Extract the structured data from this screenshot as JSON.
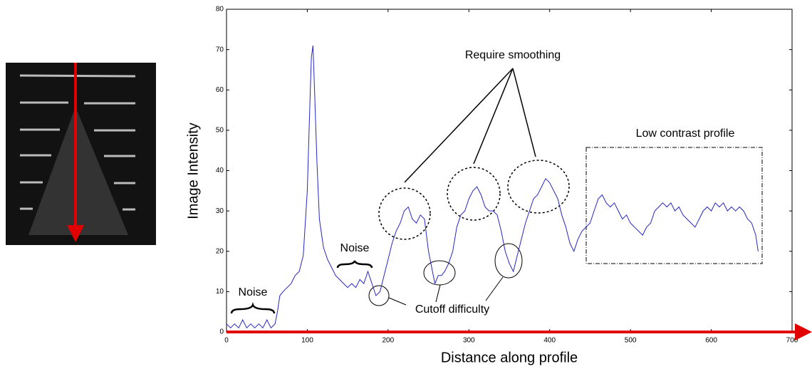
{
  "chart_data": {
    "type": "line",
    "x": [
      0,
      5,
      10,
      15,
      20,
      25,
      30,
      35,
      40,
      45,
      50,
      55,
      60,
      63,
      66,
      70,
      75,
      80,
      85,
      90,
      95,
      100,
      103,
      105,
      107,
      109,
      112,
      115,
      120,
      125,
      130,
      135,
      140,
      145,
      150,
      155,
      160,
      165,
      170,
      175,
      180,
      185,
      190,
      195,
      200,
      205,
      210,
      215,
      220,
      225,
      230,
      235,
      240,
      245,
      250,
      255,
      258,
      262,
      266,
      270,
      275,
      280,
      285,
      290,
      295,
      300,
      305,
      310,
      315,
      320,
      325,
      330,
      335,
      340,
      345,
      350,
      355,
      360,
      365,
      370,
      375,
      380,
      385,
      390,
      395,
      400,
      405,
      410,
      415,
      420,
      425,
      430,
      435,
      440,
      445,
      450,
      455,
      460,
      465,
      470,
      475,
      480,
      485,
      490,
      495,
      500,
      505,
      510,
      515,
      520,
      525,
      530,
      535,
      540,
      545,
      550,
      555,
      560,
      565,
      570,
      575,
      580,
      585,
      590,
      595,
      600,
      605,
      610,
      615,
      620,
      625,
      630,
      635,
      640,
      645,
      650,
      655,
      658
    ],
    "values": [
      2,
      1,
      2,
      1,
      3,
      1,
      2,
      1,
      2,
      1,
      3,
      1,
      2,
      5,
      9,
      10,
      11,
      12,
      14,
      15,
      19,
      35,
      55,
      68,
      71,
      60,
      42,
      28,
      21,
      18,
      16,
      14,
      13,
      12,
      11,
      12,
      11,
      13,
      12,
      15,
      12,
      9,
      10,
      14,
      18,
      22,
      25,
      27,
      30,
      31,
      28,
      27,
      29,
      28,
      20,
      15,
      12,
      14,
      14,
      15,
      17,
      20,
      26,
      29,
      30,
      33,
      35,
      36,
      34,
      31,
      30,
      30,
      29,
      25,
      20,
      17,
      15,
      19,
      23,
      27,
      30,
      33,
      34,
      36,
      38,
      37,
      35,
      33,
      29,
      26,
      22,
      20,
      23,
      25,
      26,
      27,
      30,
      33,
      34,
      32,
      31,
      32,
      30,
      28,
      29,
      27,
      26,
      25,
      24,
      26,
      27,
      30,
      31,
      32,
      31,
      32,
      30,
      31,
      29,
      28,
      27,
      26,
      28,
      30,
      31,
      30,
      32,
      31,
      32,
      30,
      31,
      30,
      31,
      30,
      28,
      27,
      24,
      20
    ],
    "color": "#2626c8",
    "xlim": [
      0,
      700
    ],
    "xticks": [
      0,
      100,
      200,
      300,
      400,
      500,
      600,
      700
    ],
    "ylim": [
      0,
      80
    ],
    "yticks": [
      0,
      10,
      20,
      30,
      40,
      50,
      60,
      70,
      80
    ],
    "xlabel": "Distance along profile",
    "ylabel": "Image Intensity",
    "annotations": [
      "Noise",
      "Noise",
      "Require smoothing",
      "Cutoff difficulty",
      "Low contrast profile"
    ]
  }
}
